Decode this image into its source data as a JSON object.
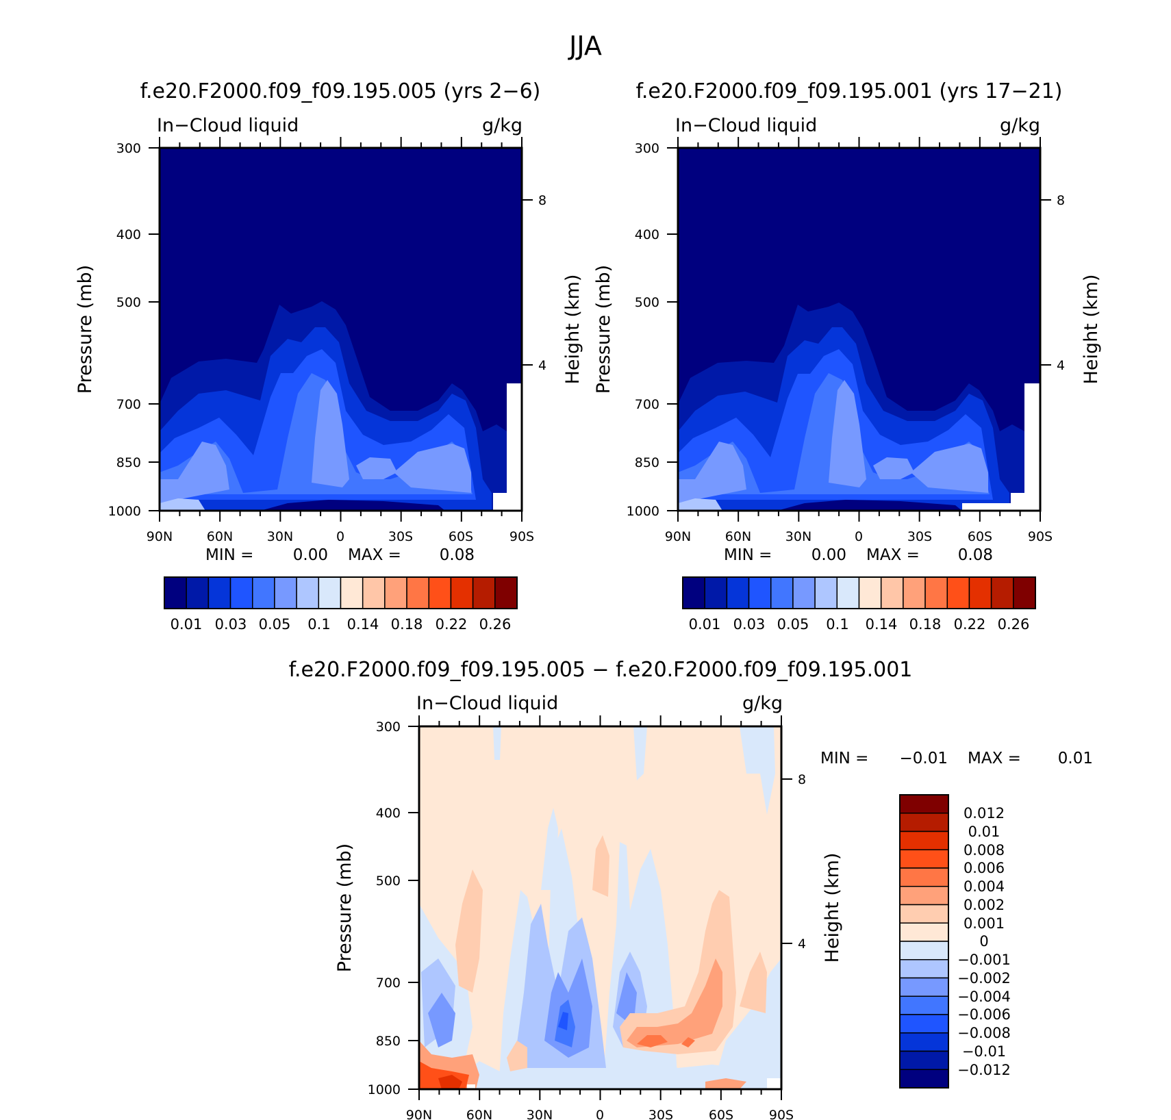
{
  "figure": {
    "title": "JJA"
  },
  "colors": {
    "levels13": [
      "#00007f",
      "#0019a8",
      "#0535d9",
      "#1f55ff",
      "#4176ff",
      "#7799ff",
      "#aec6ff",
      "#d9e8fb",
      "#ffe8d6",
      "#ffc6a8",
      "#ffa17a",
      "#ff7645",
      "#ff5018",
      "#e43000",
      "#b51c00",
      "#7f0000"
    ],
    "diff": [
      "#00007f",
      "#0019a8",
      "#0535d9",
      "#1f55ff",
      "#4176ff",
      "#7799ff",
      "#aec6ff",
      "#d9e8fb",
      "#ffe8d6",
      "#ffcdb0",
      "#ffa17a",
      "#ff7645",
      "#ff5018",
      "#e43000",
      "#b51c00",
      "#7f0000"
    ]
  },
  "chart_data": [
    {
      "type": "heatmap",
      "title": "f.e20.F2000.f09_f09.195.005 (yrs 2−6)",
      "left_label": "In−Cloud liquid",
      "right_label": "g/kg",
      "ylabel": "Pressure (mb)",
      "y2label": "Height (km)",
      "x_ticks": [
        "90N",
        "60N",
        "30N",
        "0",
        "30S",
        "60S",
        "90S"
      ],
      "y_ticks": [
        "300",
        "400",
        "500",
        "700",
        "850",
        "1000"
      ],
      "y2_ticks": [
        "8",
        "4"
      ],
      "min_label": "MIN =",
      "min_value": "0.00",
      "max_label": "MAX =",
      "max_value": "0.08",
      "colorbar_labels": [
        "0.01",
        "0.03",
        "0.05",
        "0.1",
        "0.14",
        "0.18",
        "0.22",
        "0.26"
      ]
    },
    {
      "type": "heatmap",
      "title": "f.e20.F2000.f09_f09.195.001 (yrs 17−21)",
      "left_label": "In−Cloud liquid",
      "right_label": "g/kg",
      "ylabel": "Pressure (mb)",
      "y2label": "Height (km)",
      "x_ticks": [
        "90N",
        "60N",
        "30N",
        "0",
        "30S",
        "60S",
        "90S"
      ],
      "y_ticks": [
        "300",
        "400",
        "500",
        "700",
        "850",
        "1000"
      ],
      "y2_ticks": [
        "8",
        "4"
      ],
      "min_label": "MIN =",
      "min_value": "0.00",
      "max_label": "MAX =",
      "max_value": "0.08",
      "colorbar_labels": [
        "0.01",
        "0.03",
        "0.05",
        "0.1",
        "0.14",
        "0.18",
        "0.22",
        "0.26"
      ]
    },
    {
      "type": "heatmap",
      "title": "f.e20.F2000.f09_f09.195.005 − f.e20.F2000.f09_f09.195.001",
      "left_label": "In−Cloud liquid",
      "right_label": "g/kg",
      "ylabel": "Pressure (mb)",
      "y2label": "Height (km)",
      "x_ticks": [
        "90N",
        "60N",
        "30N",
        "0",
        "30S",
        "60S",
        "90S"
      ],
      "y_ticks": [
        "300",
        "400",
        "500",
        "700",
        "850",
        "1000"
      ],
      "y2_ticks": [
        "8",
        "4"
      ],
      "min_label": "MIN =",
      "min_value": "−0.01",
      "max_label": "MAX =",
      "max_value": "0.01",
      "colorbar_labels": [
        "0.012",
        "0.01",
        "0.008",
        "0.006",
        "0.004",
        "0.002",
        "0.001",
        "0",
        "−0.001",
        "−0.002",
        "−0.004",
        "−0.006",
        "−0.008",
        "−0.01",
        "−0.012"
      ]
    }
  ]
}
